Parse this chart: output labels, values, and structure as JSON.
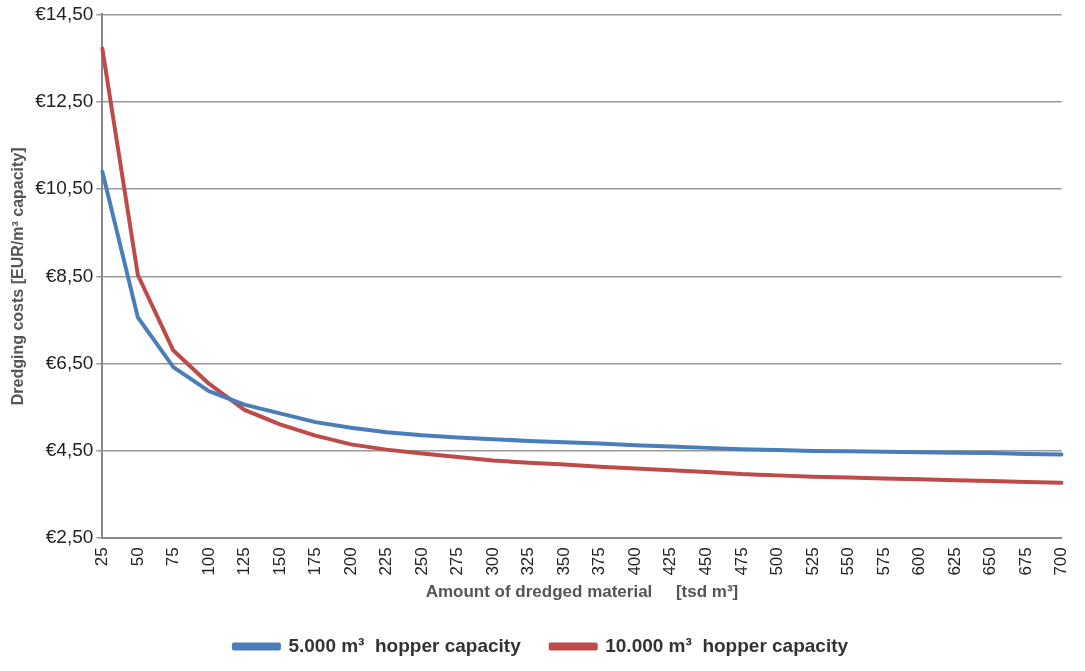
{
  "chart_data": {
    "type": "line",
    "xlabel": "Amount of dredged material     [tsd m³]",
    "ylabel": "Dredging costs [EUR/m³ capacity]",
    "categories": [
      "25",
      "50",
      "75",
      "100",
      "125",
      "150",
      "175",
      "200",
      "225",
      "250",
      "275",
      "300",
      "325",
      "350",
      "375",
      "400",
      "425",
      "450",
      "475",
      "500",
      "525",
      "550",
      "575",
      "600",
      "625",
      "650",
      "675",
      "700"
    ],
    "series": [
      {
        "name": "5.000 m³  hopper capacity",
        "color": "#4a7ebb",
        "values": [
          10.9,
          7.56,
          6.42,
          5.87,
          5.56,
          5.36,
          5.16,
          5.03,
          4.93,
          4.86,
          4.81,
          4.77,
          4.73,
          4.7,
          4.67,
          4.63,
          4.6,
          4.57,
          4.54,
          4.52,
          4.5,
          4.49,
          4.48,
          4.47,
          4.46,
          4.45,
          4.43,
          4.42
        ]
      },
      {
        "name": "10.000 m³  hopper capacity",
        "color": "#be4b48",
        "values": [
          13.72,
          8.53,
          6.8,
          6.04,
          5.44,
          5.11,
          4.85,
          4.65,
          4.53,
          4.44,
          4.36,
          4.28,
          4.23,
          4.19,
          4.14,
          4.1,
          4.06,
          4.02,
          3.97,
          3.94,
          3.91,
          3.89,
          3.87,
          3.85,
          3.83,
          3.81,
          3.79,
          3.77
        ]
      }
    ],
    "ylim": [
      2.5,
      14.5
    ],
    "yticks": [
      {
        "value": 2.5,
        "label": "€2,50"
      },
      {
        "value": 4.5,
        "label": "€4,50"
      },
      {
        "value": 6.5,
        "label": "€6,50"
      },
      {
        "value": 8.5,
        "label": "€8,50"
      },
      {
        "value": 10.5,
        "label": "€10,50"
      },
      {
        "value": 12.5,
        "label": "€12,50"
      },
      {
        "value": 14.5,
        "label": "€14,50"
      }
    ],
    "grid": "y",
    "legend": "bottom",
    "marker": "none",
    "line_style": "solid"
  }
}
